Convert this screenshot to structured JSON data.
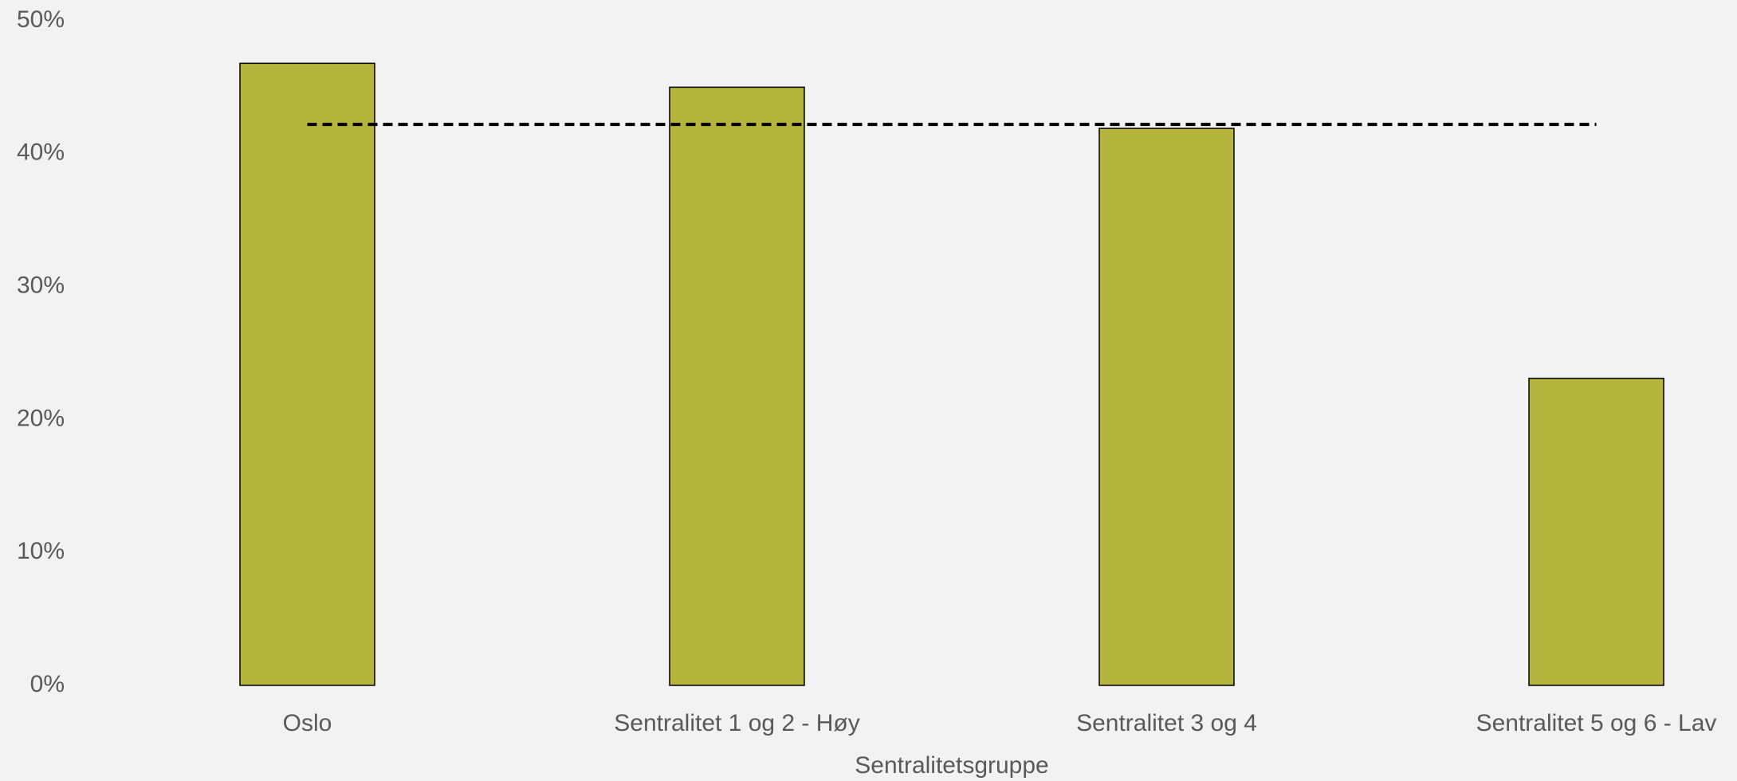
{
  "chart_data": {
    "type": "bar",
    "x_label": "Sentralitetsgruppe",
    "categories": [
      "Oslo",
      "Sentralitet 1 og 2 - Høy",
      "Sentralitet 3 og 4",
      "Sentralitet 5 og 6 - Lav"
    ],
    "series": [
      {
        "type": "bar",
        "color": "#b5b43c",
        "values": [
          46.8,
          45.0,
          41.9,
          23.1
        ]
      },
      {
        "type": "line",
        "color": "#000000",
        "dashed": true,
        "values": [
          42.2,
          42.2,
          42.2,
          42.2
        ]
      }
    ],
    "ylim": [
      0,
      50
    ],
    "yticks": [
      {
        "value": 0,
        "label": "0%"
      },
      {
        "value": 10,
        "label": "10%"
      },
      {
        "value": 20,
        "label": "20%"
      },
      {
        "value": 30,
        "label": "30%"
      },
      {
        "value": 40,
        "label": "40%"
      },
      {
        "value": 50,
        "label": "50%"
      }
    ],
    "grid": false
  }
}
